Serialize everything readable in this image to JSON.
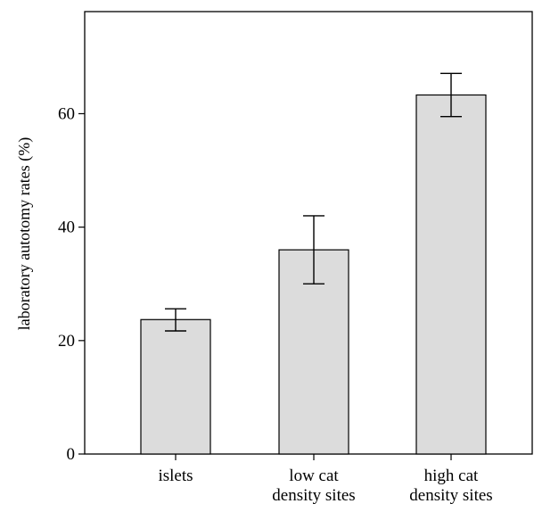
{
  "chart_data": {
    "type": "bar",
    "title": "",
    "xlabel": "",
    "ylabel": "laboratory autotomy rates (%)",
    "categories": [
      [
        "islets"
      ],
      [
        "low cat",
        "density sites"
      ],
      [
        "high cat",
        "density sites"
      ]
    ],
    "values": [
      23.7,
      36.0,
      63.3
    ],
    "error_upper": [
      25.6,
      42.0,
      67.1
    ],
    "error_lower": [
      21.7,
      30.0,
      59.5
    ],
    "ylim": [
      0,
      78
    ],
    "yticks": [
      0,
      20,
      40,
      60
    ],
    "grid": false,
    "legend": "none",
    "bar_color": "#dcdcdc",
    "edge_color": "#000000"
  }
}
